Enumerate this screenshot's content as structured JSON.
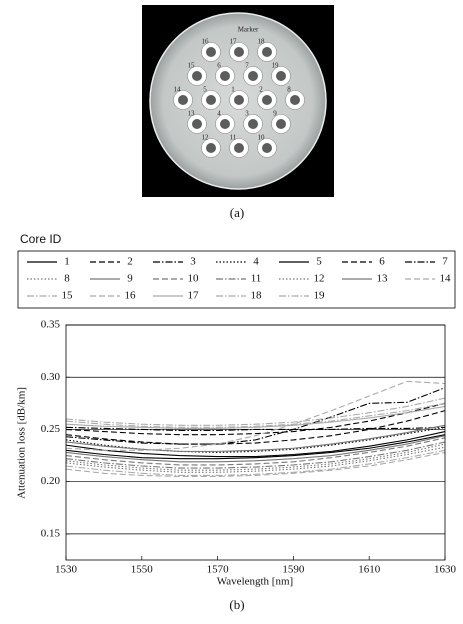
{
  "figure_a": {
    "marker_label": "Marker",
    "caption": "(a)",
    "cores": [
      "16",
      "17",
      "18",
      "15",
      "6",
      "7",
      "19",
      "14",
      "5",
      "1",
      "2",
      "8",
      "13",
      "4",
      "3",
      "9",
      "12",
      "11",
      "10"
    ]
  },
  "figure_b": {
    "caption": "(b)"
  },
  "chart_data": {
    "type": "line",
    "legend_title": "Core ID",
    "x_label": "Wavelength [nm]",
    "y_label": "Attenuation loss [dB/km]",
    "x": [
      1530,
      1540,
      1550,
      1560,
      1570,
      1580,
      1590,
      1600,
      1610,
      1620,
      1630
    ],
    "xlim": [
      1530,
      1630
    ],
    "xticks": [
      1530,
      1550,
      1570,
      1590,
      1610,
      1630
    ],
    "ylim": [
      0.125,
      0.35
    ],
    "yticks": [
      0.15,
      {
        "value": 0.2,
        "label": "0.20"
      },
      0.25,
      {
        "value": 0.3,
        "label": "0.30"
      },
      0.35
    ],
    "grid": true,
    "series": [
      {
        "name": "1",
        "color": "#000000",
        "dash": "solid",
        "values": [
          0.235,
          0.23,
          0.227,
          0.225,
          0.224,
          0.224,
          0.226,
          0.229,
          0.234,
          0.24,
          0.248
        ]
      },
      {
        "name": "2",
        "color": "#000000",
        "dash": "dashed",
        "values": [
          0.25,
          0.248,
          0.246,
          0.245,
          0.245,
          0.246,
          0.248,
          0.252,
          0.258,
          0.266,
          0.275
        ]
      },
      {
        "name": "3",
        "color": "#000000",
        "dash": "dashdot",
        "values": [
          0.252,
          0.251,
          0.25,
          0.249,
          0.249,
          0.25,
          0.25,
          0.25,
          0.251,
          0.251,
          0.252
        ]
      },
      {
        "name": "4",
        "color": "#000000",
        "dash": "dotted",
        "values": [
          0.24,
          0.235,
          0.231,
          0.229,
          0.228,
          0.229,
          0.231,
          0.235,
          0.24,
          0.246,
          0.252
        ]
      },
      {
        "name": "5",
        "color": "#000000",
        "dash": "solid",
        "values": [
          0.23,
          0.226,
          0.223,
          0.222,
          0.222,
          0.223,
          0.225,
          0.228,
          0.232,
          0.238,
          0.245
        ]
      },
      {
        "name": "6",
        "color": "#000000",
        "dash": "dashed",
        "values": [
          0.245,
          0.241,
          0.238,
          0.236,
          0.236,
          0.237,
          0.24,
          0.244,
          0.25,
          0.258,
          0.268
        ]
      },
      {
        "name": "7",
        "color": "#000000",
        "dash": "dashdot",
        "values": [
          0.243,
          0.24,
          0.237,
          0.236,
          0.236,
          0.24,
          0.25,
          0.262,
          0.275,
          0.276,
          0.29
        ]
      },
      {
        "name": "8",
        "color": "#777777",
        "dash": "dotted",
        "values": [
          0.22,
          0.216,
          0.213,
          0.211,
          0.211,
          0.212,
          0.214,
          0.217,
          0.222,
          0.228,
          0.236
        ]
      },
      {
        "name": "9",
        "color": "#777777",
        "dash": "solid",
        "values": [
          0.228,
          0.224,
          0.221,
          0.219,
          0.219,
          0.22,
          0.222,
          0.225,
          0.23,
          0.236,
          0.244
        ]
      },
      {
        "name": "10",
        "color": "#777777",
        "dash": "dashed",
        "values": [
          0.225,
          0.221,
          0.218,
          0.216,
          0.216,
          0.217,
          0.219,
          0.223,
          0.228,
          0.234,
          0.242
        ]
      },
      {
        "name": "11",
        "color": "#777777",
        "dash": "dashdot",
        "values": [
          0.222,
          0.218,
          0.215,
          0.213,
          0.213,
          0.214,
          0.216,
          0.219,
          0.224,
          0.23,
          0.238
        ]
      },
      {
        "name": "12",
        "color": "#777777",
        "dash": "dotted",
        "values": [
          0.218,
          0.214,
          0.211,
          0.209,
          0.209,
          0.21,
          0.212,
          0.215,
          0.22,
          0.226,
          0.233
        ]
      },
      {
        "name": "13",
        "color": "#777777",
        "dash": "solid",
        "values": [
          0.238,
          0.234,
          0.231,
          0.229,
          0.229,
          0.23,
          0.232,
          0.236,
          0.241,
          0.247,
          0.254
        ]
      },
      {
        "name": "14",
        "color": "#aaaaaa",
        "dash": "dashed",
        "values": [
          0.232,
          0.23,
          0.23,
          0.232,
          0.236,
          0.244,
          0.255,
          0.268,
          0.282,
          0.296,
          0.294
        ]
      },
      {
        "name": "15",
        "color": "#aaaaaa",
        "dash": "dashdot",
        "values": [
          0.215,
          0.211,
          0.208,
          0.206,
          0.206,
          0.207,
          0.209,
          0.212,
          0.217,
          0.223,
          0.23
        ]
      },
      {
        "name": "16",
        "color": "#aaaaaa",
        "dash": "dashed",
        "values": [
          0.212,
          0.208,
          0.206,
          0.205,
          0.205,
          0.206,
          0.208,
          0.211,
          0.215,
          0.221,
          0.228
        ]
      },
      {
        "name": "17",
        "color": "#aaaaaa",
        "dash": "solid",
        "values": [
          0.255,
          0.253,
          0.252,
          0.251,
          0.251,
          0.252,
          0.254,
          0.257,
          0.261,
          0.266,
          0.272
        ]
      },
      {
        "name": "18",
        "color": "#aaaaaa",
        "dash": "dashdot",
        "values": [
          0.258,
          0.255,
          0.253,
          0.252,
          0.252,
          0.253,
          0.255,
          0.258,
          0.263,
          0.268,
          0.275
        ]
      },
      {
        "name": "19",
        "color": "#aaaaaa",
        "dash": "dashdot",
        "values": [
          0.26,
          0.257,
          0.255,
          0.254,
          0.254,
          0.255,
          0.257,
          0.261,
          0.266,
          0.272,
          0.28
        ]
      }
    ]
  }
}
